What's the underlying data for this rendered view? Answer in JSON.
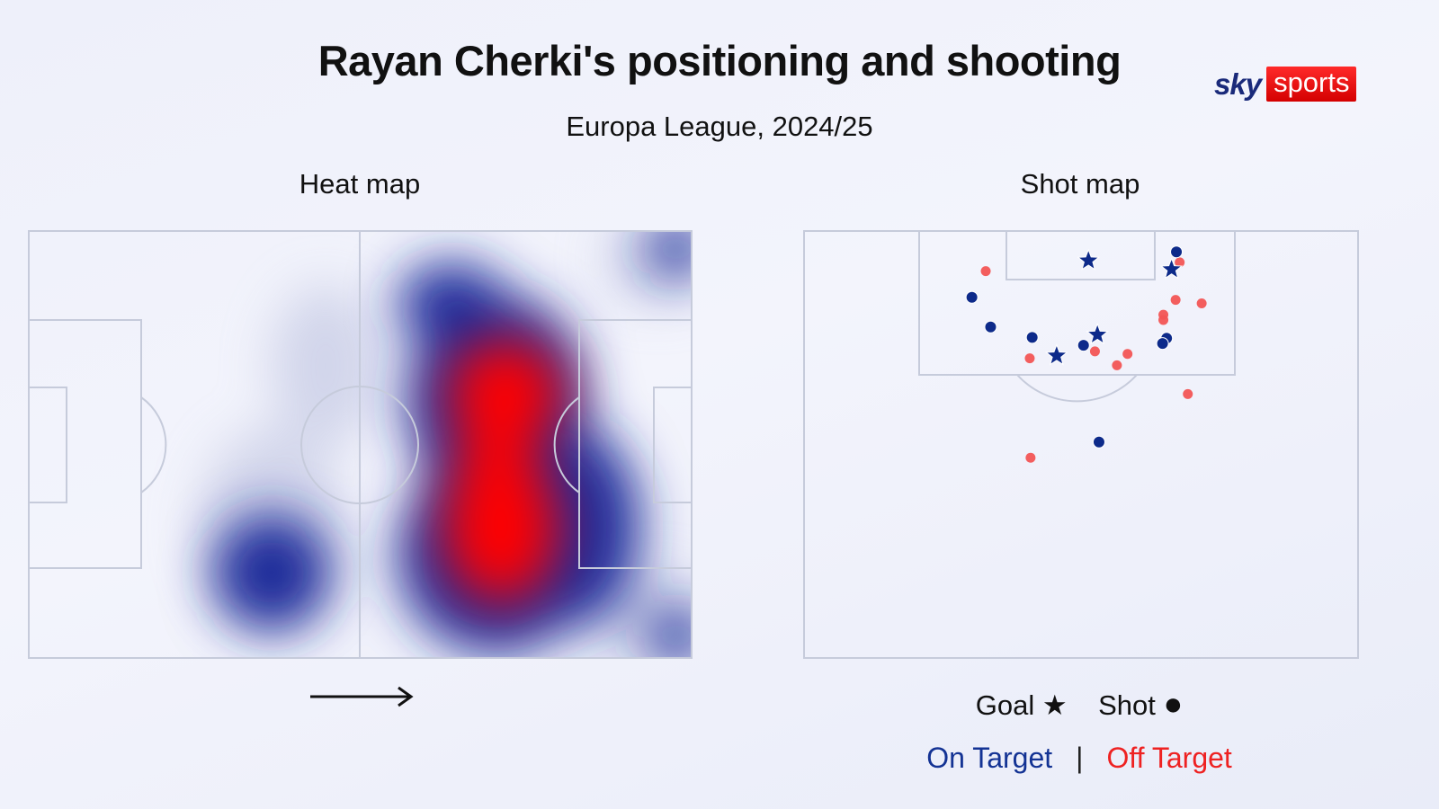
{
  "header": {
    "title": "Rayan Cherki's positioning and shooting",
    "subtitle": "Europa League, 2024/25",
    "logo_sky": "sky",
    "logo_sports": "sports"
  },
  "panels": {
    "heat_label": "Heat map",
    "shot_label": "Shot map"
  },
  "legend": {
    "goal": "Goal",
    "goal_symbol": "★",
    "shot": "Shot",
    "shot_symbol": "●",
    "on_target": "On Target",
    "separator": "|",
    "off_target": "Off Target"
  },
  "colors": {
    "on_target": "#0d2a8a",
    "off_target": "#f25555",
    "heat_low": "#1a2a9a",
    "heat_high": "#ff0000"
  },
  "chart_data": [
    {
      "type": "heatmap",
      "title": "Heat map",
      "direction": "left-to-right",
      "hotspots": [
        {
          "zone": "attacking half, centre-left",
          "intensity": "high"
        },
        {
          "zone": "attacking half, right of centre",
          "intensity": "very high"
        },
        {
          "zone": "own half, right wing",
          "intensity": "medium"
        }
      ]
    },
    {
      "type": "scatter",
      "title": "Shot map",
      "units": "metres (x from left touchline, y from goal line)",
      "goals": [
        [
          34.9,
          3.4
        ],
        [
          45.1,
          4.4
        ],
        [
          36.0,
          11.9
        ],
        [
          31.0,
          14.3
        ]
      ],
      "on_target": [
        [
          45.7,
          2.4
        ],
        [
          20.6,
          7.6
        ],
        [
          22.9,
          11.0
        ],
        [
          28.0,
          12.2
        ],
        [
          34.3,
          13.1
        ],
        [
          44.5,
          12.3
        ],
        [
          44.0,
          12.9
        ],
        [
          36.2,
          24.2
        ]
      ],
      "off_target": [
        [
          22.3,
          4.6
        ],
        [
          46.1,
          3.6
        ],
        [
          45.6,
          7.9
        ],
        [
          48.8,
          8.3
        ],
        [
          44.1,
          9.6
        ],
        [
          44.1,
          10.2
        ],
        [
          27.7,
          14.6
        ],
        [
          35.7,
          13.8
        ],
        [
          39.7,
          14.1
        ],
        [
          38.4,
          15.4
        ],
        [
          47.1,
          18.7
        ],
        [
          27.8,
          26.0
        ]
      ]
    }
  ]
}
